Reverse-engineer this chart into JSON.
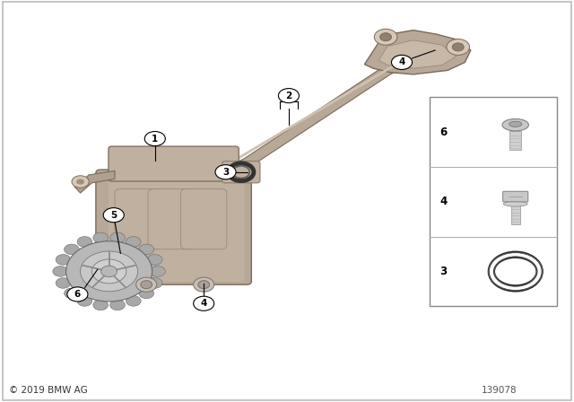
{
  "title": "",
  "background_color": "#ffffff",
  "border_color": "#cccccc",
  "text_color": "#000000",
  "copyright_text": "© 2019 BMW AG",
  "part_number": "139078",
  "fig_width": 6.4,
  "fig_height": 4.48,
  "dpi": 100,
  "main_part_color": "#b0a090",
  "gear_color": "#a0a0a0",
  "bolt_color": "#c0c0c0"
}
